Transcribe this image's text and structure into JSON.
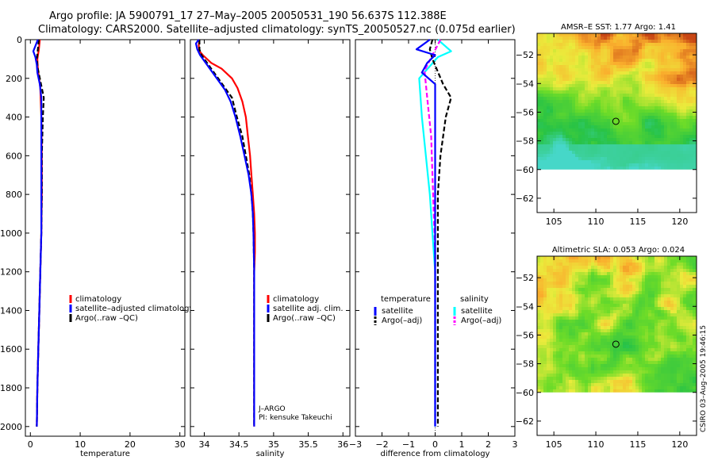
{
  "title": {
    "line1": "Argo profile: JA 5900791_17 27–May–2005 20050531_190 56.637S 112.388E",
    "line2": "Climatology: CARS2000. Satellite–adjusted climatology: synTS_20050527.nc (0.075d earlier)"
  },
  "credit": "CSIRO 03–Aug–2005 19:46:15",
  "colors": {
    "climatology": "#ff0000",
    "satellite": "#0000ff",
    "argo": "#000000",
    "salinity_satellite": "#00ffff",
    "salinity_argo": "#ff00ff"
  },
  "chart_data": [
    {
      "type": "line",
      "xlabel": "temperature",
      "xlim": [
        -1,
        31
      ],
      "ylim": [
        2050,
        0
      ],
      "xticks": [
        0,
        10,
        20,
        30
      ],
      "yticks": [
        0,
        200,
        400,
        600,
        800,
        1000,
        1200,
        1400,
        1600,
        1800,
        2000
      ],
      "xticklabels": [
        "0",
        "10",
        "20",
        "30"
      ],
      "yticklabels": [
        "0",
        "200",
        "400",
        "600",
        "800",
        "1000",
        "1200",
        "1400",
        "1600",
        "1800",
        "2000"
      ],
      "legend": [
        {
          "label": "climatology",
          "color": "#ff0000"
        },
        {
          "label": "satellite–adjusted climatology",
          "color": "#0000ff"
        },
        {
          "label": "Argo(..raw –QC)",
          "color": "#000000"
        }
      ],
      "series": [
        {
          "color": "#ff0000",
          "dash": "",
          "points": [
            [
              1.9,
              0
            ],
            [
              1.7,
              50
            ],
            [
              1.4,
              100
            ],
            [
              1.5,
              150
            ],
            [
              2.0,
              250
            ],
            [
              2.2,
              400
            ],
            [
              2.3,
              600
            ],
            [
              2.3,
              800
            ],
            [
              2.2,
              1000
            ],
            [
              2.0,
              1200
            ],
            [
              1.8,
              1400
            ],
            [
              1.6,
              1600
            ],
            [
              1.4,
              1800
            ],
            [
              1.3,
              2000
            ]
          ]
        },
        {
          "color": "#000000",
          "dash": "6,3",
          "points": [
            [
              1.7,
              0
            ],
            [
              1.5,
              50
            ],
            [
              1.3,
              100
            ],
            [
              1.5,
              150
            ],
            [
              2.3,
              250
            ],
            [
              2.7,
              300
            ],
            [
              2.5,
              400
            ],
            [
              2.3,
              600
            ],
            [
              2.3,
              800
            ],
            [
              2.2,
              1000
            ],
            [
              2.0,
              1200
            ],
            [
              1.8,
              1400
            ],
            [
              1.6,
              1600
            ],
            [
              1.4,
              1800
            ],
            [
              1.3,
              2000
            ]
          ]
        },
        {
          "color": "#0000ff",
          "dash": "",
          "points": [
            [
              1.5,
              0
            ],
            [
              1.2,
              20
            ],
            [
              0.6,
              60
            ],
            [
              1.0,
              90
            ],
            [
              1.3,
              130
            ],
            [
              1.4,
              170
            ],
            [
              1.9,
              230
            ],
            [
              2.2,
              300
            ],
            [
              2.2,
              400
            ],
            [
              2.2,
              600
            ],
            [
              2.2,
              800
            ],
            [
              2.2,
              1000
            ],
            [
              2.0,
              1200
            ],
            [
              1.8,
              1400
            ],
            [
              1.6,
              1600
            ],
            [
              1.4,
              1800
            ],
            [
              1.3,
              2000
            ]
          ]
        }
      ]
    },
    {
      "type": "line",
      "xlabel": "salinity",
      "xlim": [
        33.8,
        36.1
      ],
      "ylim": [
        2050,
        0
      ],
      "xticks": [
        34,
        34.5,
        35,
        35.5,
        36
      ],
      "yticks": [
        0,
        200,
        400,
        600,
        800,
        1000,
        1200,
        1400,
        1600,
        1800,
        2000
      ],
      "xticklabels": [
        "34",
        "34.5",
        "35",
        "35.5",
        "36"
      ],
      "yticklabels": [],
      "annotation": [
        "J–ARGO",
        "PI: kensuke Takeuchi"
      ],
      "legend": [
        {
          "label": "climatology",
          "color": "#ff0000"
        },
        {
          "label": "satellite adj. clim.",
          "color": "#0000ff"
        },
        {
          "label": "Argo(..raw –QC)",
          "color": "#000000"
        }
      ],
      "series": [
        {
          "color": "#ff0000",
          "dash": "",
          "points": [
            [
              33.93,
              0
            ],
            [
              33.92,
              30
            ],
            [
              33.93,
              60
            ],
            [
              33.98,
              80
            ],
            [
              34.1,
              120
            ],
            [
              34.25,
              150
            ],
            [
              34.4,
              200
            ],
            [
              34.48,
              250
            ],
            [
              34.55,
              320
            ],
            [
              34.6,
              400
            ],
            [
              34.63,
              500
            ],
            [
              34.66,
              600
            ],
            [
              34.68,
              700
            ],
            [
              34.7,
              800
            ],
            [
              34.72,
              900
            ],
            [
              34.73,
              1000
            ],
            [
              34.73,
              1100
            ],
            [
              34.72,
              1200
            ],
            [
              34.72,
              1400
            ],
            [
              34.72,
              1600
            ],
            [
              34.72,
              1800
            ],
            [
              34.72,
              2000
            ]
          ]
        },
        {
          "color": "#000000",
          "dash": "6,3",
          "points": [
            [
              33.93,
              0
            ],
            [
              33.93,
              50
            ],
            [
              33.96,
              80
            ],
            [
              34.0,
              100
            ],
            [
              34.1,
              150
            ],
            [
              34.2,
              200
            ],
            [
              34.3,
              250
            ],
            [
              34.4,
              300
            ],
            [
              34.47,
              400
            ],
            [
              34.55,
              500
            ],
            [
              34.6,
              600
            ],
            [
              34.65,
              700
            ],
            [
              34.68,
              800
            ],
            [
              34.7,
              900
            ],
            [
              34.71,
              1000
            ],
            [
              34.72,
              1200
            ],
            [
              34.72,
              1400
            ],
            [
              34.72,
              1600
            ],
            [
              34.72,
              1800
            ],
            [
              34.72,
              2000
            ]
          ]
        },
        {
          "color": "#0000ff",
          "dash": "",
          "points": [
            [
              33.92,
              0
            ],
            [
              33.88,
              20
            ],
            [
              33.9,
              50
            ],
            [
              33.94,
              80
            ],
            [
              34.0,
              110
            ],
            [
              34.1,
              160
            ],
            [
              34.2,
              210
            ],
            [
              34.3,
              260
            ],
            [
              34.38,
              320
            ],
            [
              34.45,
              400
            ],
            [
              34.52,
              500
            ],
            [
              34.58,
              600
            ],
            [
              34.64,
              700
            ],
            [
              34.68,
              800
            ],
            [
              34.7,
              900
            ],
            [
              34.71,
              1000
            ],
            [
              34.72,
              1200
            ],
            [
              34.72,
              1400
            ],
            [
              34.72,
              1600
            ],
            [
              34.72,
              1800
            ],
            [
              34.72,
              2000
            ]
          ]
        }
      ]
    },
    {
      "type": "line",
      "xlabel": "difference from climatology",
      "xlim": [
        -3,
        3
      ],
      "ylim": [
        2050,
        0
      ],
      "xticks": [
        -3,
        -2,
        -1,
        0,
        1,
        2,
        3
      ],
      "yticks": [
        0,
        200,
        400,
        600,
        800,
        1000,
        1200,
        1400,
        1600,
        1800,
        2000
      ],
      "xticklabels": [
        "−3",
        "−2",
        "−1",
        "0",
        "1",
        "2",
        "3"
      ],
      "yticklabels": [],
      "legend_left_title": "temperature",
      "legend_right_title": "salinity",
      "legend": [
        {
          "label": "satellite",
          "color": "#0000ff"
        },
        {
          "label": "Argo(–adj)",
          "color": "#000000"
        },
        {
          "label": "satellite",
          "color": "#00ffff"
        },
        {
          "label": "Argo(–adj)",
          "color": "#ff00ff"
        }
      ],
      "series": [
        {
          "color": "#00ffff",
          "dash": "",
          "points": [
            [
              0.1,
              0
            ],
            [
              0.6,
              60
            ],
            [
              0.1,
              90
            ],
            [
              -0.6,
              200
            ],
            [
              -0.5,
              400
            ],
            [
              -0.35,
              600
            ],
            [
              -0.2,
              800
            ],
            [
              -0.1,
              1000
            ],
            [
              0,
              1200
            ],
            [
              0,
              1400
            ],
            [
              0,
              1600
            ],
            [
              0,
              1800
            ],
            [
              0,
              2000
            ]
          ]
        },
        {
          "color": "#ff00ff",
          "dash": "6,3",
          "points": [
            [
              0.2,
              0
            ],
            [
              -0.1,
              80
            ],
            [
              -0.4,
              160
            ],
            [
              -0.3,
              300
            ],
            [
              -0.15,
              500
            ],
            [
              -0.1,
              700
            ],
            [
              -0.05,
              900
            ],
            [
              0,
              1100
            ],
            [
              0,
              1400
            ],
            [
              0,
              1700
            ],
            [
              0,
              2000
            ]
          ]
        },
        {
          "color": "#000000",
          "dash": "6,3",
          "points": [
            [
              -0.1,
              0
            ],
            [
              -0.2,
              50
            ],
            [
              -0.1,
              100
            ],
            [
              0.3,
              230
            ],
            [
              0.6,
              300
            ],
            [
              0.4,
              400
            ],
            [
              0.2,
              600
            ],
            [
              0.1,
              800
            ],
            [
              0.1,
              1000
            ],
            [
              0.1,
              1200
            ],
            [
              0.1,
              1400
            ],
            [
              0.1,
              1600
            ],
            [
              0.1,
              1800
            ],
            [
              0.1,
              2000
            ]
          ]
        },
        {
          "color": "#0000ff",
          "dash": "",
          "points": [
            [
              -0.2,
              0
            ],
            [
              -0.7,
              50
            ],
            [
              0,
              80
            ],
            [
              -0.3,
              120
            ],
            [
              -0.5,
              170
            ],
            [
              0,
              230
            ],
            [
              0,
              300
            ],
            [
              0,
              400
            ],
            [
              0,
              600
            ],
            [
              0,
              800
            ],
            [
              0,
              1000
            ],
            [
              0,
              1200
            ],
            [
              0,
              1400
            ],
            [
              0,
              1600
            ],
            [
              0,
              1800
            ],
            [
              0,
              2000
            ]
          ]
        }
      ]
    },
    {
      "type": "heatmap",
      "title": "AMSR–E SST: 1.77 Argo: 1.41",
      "xlim": [
        103,
        122
      ],
      "ylim": [
        -63,
        -50.5
      ],
      "data_ylim": [
        -60,
        -50.5
      ],
      "xticks": [
        105,
        110,
        115,
        120
      ],
      "yticks": [
        -52,
        -54,
        -56,
        -58,
        -60,
        -62
      ],
      "xticklabels": [
        "105",
        "110",
        "115",
        "120"
      ],
      "yticklabels": [
        "−52",
        "−54",
        "−56",
        "−58",
        "−60",
        "−62"
      ],
      "marker": [
        112.388,
        -56.637
      ]
    },
    {
      "type": "heatmap",
      "title": "Altimetric SLA: 0.053 Argo: 0.024",
      "xlim": [
        103,
        122
      ],
      "ylim": [
        -63,
        -50.5
      ],
      "data_ylim": [
        -60,
        -50.5
      ],
      "xticks": [
        105,
        110,
        115,
        120
      ],
      "yticks": [
        -52,
        -54,
        -56,
        -58,
        -60,
        -62
      ],
      "xticklabels": [
        "105",
        "110",
        "115",
        "120"
      ],
      "yticklabels": [
        "−52",
        "−54",
        "−56",
        "−58",
        "−60",
        "−62"
      ],
      "marker": [
        112.388,
        -56.637
      ]
    }
  ]
}
